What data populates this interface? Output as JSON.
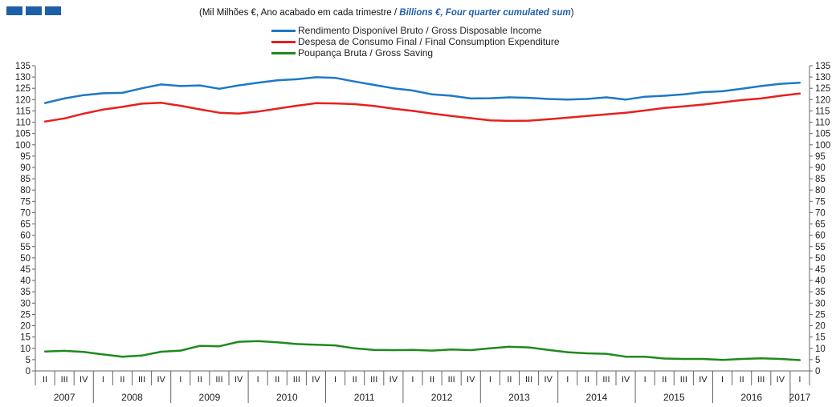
{
  "header": {
    "subtitle_pt": "(Mil Milhões €, Ano acabado em cada trimestre / ",
    "subtitle_en": "Billions €, Four quarter cumulated sum",
    "subtitle_end": ")",
    "brand_color": "#1f5fa6"
  },
  "chart_data": {
    "type": "line",
    "title": "",
    "xlabel": "",
    "ylabel": "",
    "ylim": [
      0,
      135
    ],
    "ytick_step": 5,
    "grid": false,
    "legend_position": "top-center",
    "x_quarters": [
      "II",
      "III",
      "IV",
      "I",
      "II",
      "III",
      "IV",
      "I",
      "II",
      "III",
      "IV",
      "I",
      "II",
      "III",
      "IV",
      "I",
      "II",
      "III",
      "IV",
      "I",
      "II",
      "III",
      "IV",
      "I",
      "II",
      "III",
      "IV",
      "I",
      "II",
      "III",
      "IV",
      "I",
      "II",
      "III",
      "IV",
      "I",
      "II",
      "III",
      "IV",
      "I"
    ],
    "x_years": [
      {
        "label": "2007",
        "count": 3
      },
      {
        "label": "2008",
        "count": 4
      },
      {
        "label": "2009",
        "count": 4
      },
      {
        "label": "2010",
        "count": 4
      },
      {
        "label": "2011",
        "count": 4
      },
      {
        "label": "2012",
        "count": 4
      },
      {
        "label": "2013",
        "count": 4
      },
      {
        "label": "2014",
        "count": 4
      },
      {
        "label": "2015",
        "count": 4
      },
      {
        "label": "2016",
        "count": 4
      },
      {
        "label": "2017",
        "count": 1
      }
    ],
    "series": [
      {
        "name": "Rendimento Disponível Bruto / Gross Disposable Income",
        "color": "#1f78c8",
        "values": [
          118.5,
          120.5,
          122,
          122.8,
          123,
          125,
          126.7,
          126,
          126.3,
          124.8,
          126.3,
          127.5,
          128.5,
          129,
          129.9,
          129.6,
          128,
          126.5,
          125,
          124,
          122.3,
          121.7,
          120.5,
          120.6,
          121,
          120.8,
          120.3,
          120,
          120.3,
          121,
          120,
          121.3,
          121.7,
          122.3,
          123.3,
          123.7,
          124.8,
          126,
          127,
          127.5
        ]
      },
      {
        "name": "Despesa de Consumo Final / Final Consumption Expenditure",
        "color": "#e8201e",
        "values": [
          110.3,
          111.7,
          113.8,
          115.6,
          116.8,
          118.2,
          118.6,
          117.3,
          115.7,
          114.2,
          113.8,
          114.7,
          116,
          117.3,
          118.4,
          118.3,
          118,
          117.2,
          116,
          115,
          113.8,
          112.8,
          111.8,
          110.8,
          110.6,
          110.7,
          111.3,
          112,
          112.8,
          113.5,
          114.2,
          115.2,
          116.3,
          117,
          117.8,
          118.8,
          119.8,
          120.5,
          121.7,
          122.7
        ]
      },
      {
        "name": "Poupança Bruta / Gross Saving",
        "color": "#1e8a1e",
        "values": [
          8.6,
          8.9,
          8.4,
          7.3,
          6.3,
          6.8,
          8.5,
          9,
          11.1,
          10.9,
          12.9,
          13.2,
          12.7,
          11.9,
          11.6,
          11.3,
          10,
          9.3,
          9.2,
          9.3,
          9,
          9.5,
          9.2,
          10,
          10.7,
          10.4,
          9.3,
          8.3,
          7.8,
          7.6,
          6.3,
          6.3,
          5.5,
          5.3,
          5.3,
          4.9,
          5.3,
          5.6,
          5.3,
          4.8
        ]
      }
    ]
  }
}
